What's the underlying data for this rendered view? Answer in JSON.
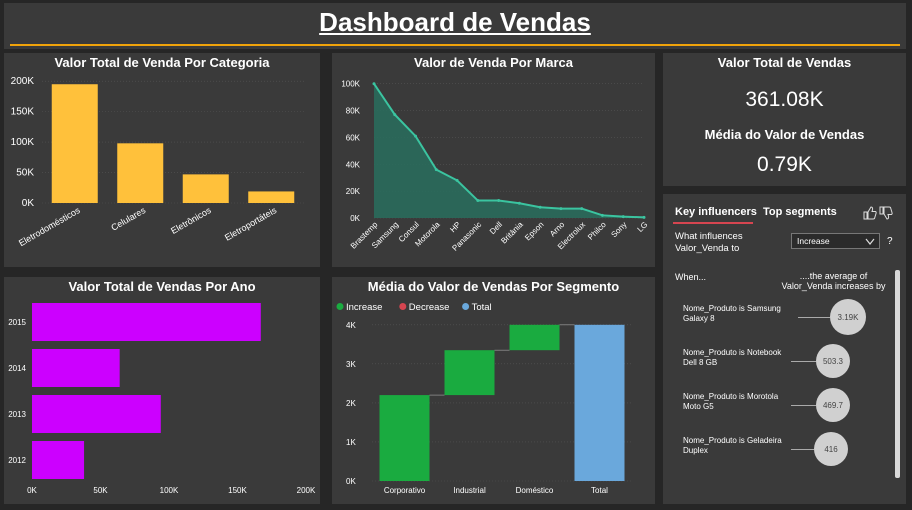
{
  "header": {
    "title": "Dashboard de Vendas"
  },
  "colors": {
    "accent_line": "#f0a30a",
    "category_bar": "#ffc13b",
    "year_bar": "#cc00ff",
    "brand_area": "#2a6b5c",
    "brand_line": "#3bc4a0",
    "increase": "#1aab40",
    "decrease": "#d64550",
    "total": "#6aa8dc"
  },
  "chart_data": [
    {
      "type": "bar",
      "title": "Valor Total de Venda Por Categoria",
      "categories": [
        "Eletrodomésticos",
        "Celulares",
        "Eletrônicos",
        "Eletroportáteis"
      ],
      "values": [
        195000,
        98000,
        47000,
        19000
      ],
      "ylim": [
        0,
        220000
      ],
      "yticks": [
        "0K",
        "50K",
        "100K",
        "150K",
        "200K"
      ],
      "ytick_values": [
        0,
        50000,
        100000,
        150000,
        200000
      ]
    },
    {
      "type": "area",
      "title": "Valor de Venda Por Marca",
      "categories": [
        "Brastemp",
        "Samsung",
        "Consul",
        "Motorola",
        "HP",
        "Panasonic",
        "Dell",
        "Britânia",
        "Epson",
        "Arno",
        "Electrolux",
        "Philco",
        "Sony",
        "LG"
      ],
      "values": [
        100000,
        77000,
        61000,
        36000,
        28000,
        13000,
        13000,
        11000,
        8000,
        7000,
        7000,
        2000,
        1000,
        500
      ],
      "ylim": [
        0,
        105000
      ],
      "yticks": [
        "0K",
        "20K",
        "40K",
        "60K",
        "80K",
        "100K"
      ],
      "ytick_values": [
        0,
        20000,
        40000,
        60000,
        80000,
        100000
      ]
    },
    {
      "type": "bar",
      "orientation": "horizontal",
      "title": "Valor Total de Vendas Por Ano",
      "categories": [
        "2015",
        "2014",
        "2013",
        "2012"
      ],
      "values": [
        167000,
        64000,
        94000,
        38000
      ],
      "xlim": [
        0,
        200000
      ],
      "xticks": [
        "0K",
        "50K",
        "100K",
        "150K",
        "200K"
      ],
      "xtick_values": [
        0,
        50000,
        100000,
        150000,
        200000
      ]
    },
    {
      "type": "waterfall",
      "title": "Média do Valor de Vendas Por Segmento",
      "legend": [
        "Increase",
        "Decrease",
        "Total"
      ],
      "categories": [
        "Corporativo",
        "Industrial",
        "Doméstico",
        "Total"
      ],
      "values": [
        2200,
        1150,
        650,
        4000
      ],
      "kinds": [
        "increase",
        "increase",
        "increase",
        "total"
      ],
      "ylim": [
        0,
        4200
      ],
      "yticks": [
        "0K",
        "1K",
        "2K",
        "3K",
        "4K"
      ],
      "ytick_values": [
        0,
        1000,
        2000,
        3000,
        4000
      ]
    }
  ],
  "kpis": {
    "total_label": "Valor Total de Vendas",
    "total_value": "361.08K",
    "avg_label": "Média do Valor de Vendas",
    "avg_value": "0.79K"
  },
  "key_influencers": {
    "tab_active": "Key influencers",
    "tab_other": "Top segments",
    "question": "What influences Valor_Venda to",
    "select_value": "Increase",
    "help": "?",
    "col_when": "When...",
    "col_avg": "....the average of Valor_Venda increases by",
    "rows": [
      {
        "label": "Nome_Produto is Samsung Galaxy 8",
        "value": "3.19K"
      },
      {
        "label": "Nome_Produto is Notebook Dell 8 GB",
        "value": "503.3"
      },
      {
        "label": "Nome_Produto is Morotola Moto G5",
        "value": "469.7"
      },
      {
        "label": "Nome_Produto is Geladeira Duplex",
        "value": "416"
      }
    ]
  }
}
